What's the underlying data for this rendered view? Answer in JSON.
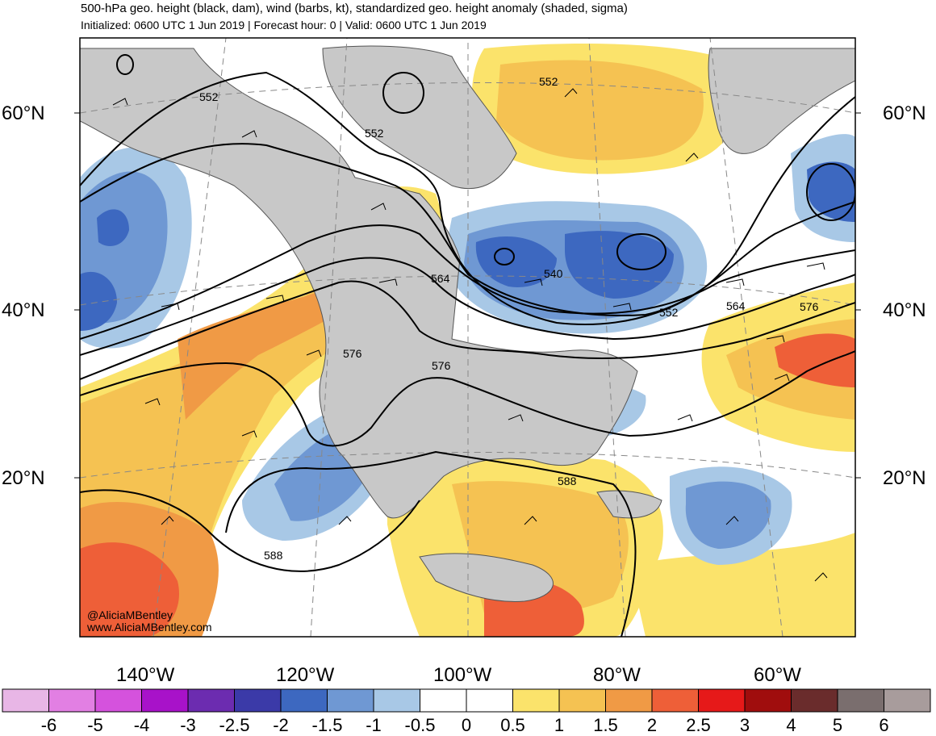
{
  "title": "500-hPa geo. height (black, dam), wind (barbs, kt), standardized geo. height anomaly (shaded, sigma)",
  "subtitle": "Initialized: 0600 UTC 1 Jun 2019 | Forecast hour: 0 | Valid: 0600 UTC 1 Jun 2019",
  "lat_labels": [
    "60°N",
    "40°N",
    "20°N"
  ],
  "lon_labels": [
    "140°W",
    "120°W",
    "100°W",
    "80°W",
    "60°W"
  ],
  "contour_labels": [
    "552",
    "552",
    "552",
    "540",
    "564",
    "552",
    "564",
    "576",
    "576",
    "576",
    "588",
    "588"
  ],
  "credits": {
    "handle": "@AliciaMBentley",
    "website": "www.AliciaMBentley.com"
  },
  "colorbar": {
    "labels": [
      "-6",
      "-5",
      "-4",
      "-3",
      "-2.5",
      "-2",
      "-1.5",
      "-1",
      "-0.5",
      "0",
      "0.5",
      "1",
      "1.5",
      "2",
      "2.5",
      "3",
      "4",
      "5",
      "6"
    ],
    "colors": [
      "#e8b6e6",
      "#e27fe3",
      "#d552dd",
      "#a812c9",
      "#6c2cb0",
      "#3b3aa8",
      "#3d68c0",
      "#6f98d3",
      "#a8c8e6",
      "#ffffff",
      "#ffffff",
      "#fbe36b",
      "#f5c252",
      "#f09a45",
      "#ee5f38",
      "#e61919",
      "#a00d0d",
      "#6a2c2c",
      "#7a6e6e",
      "#a89c9c"
    ]
  },
  "colors": {
    "land": "#c8c8c8",
    "ocean": "#ffffff",
    "contour": "#000000",
    "grid": "#888888"
  }
}
